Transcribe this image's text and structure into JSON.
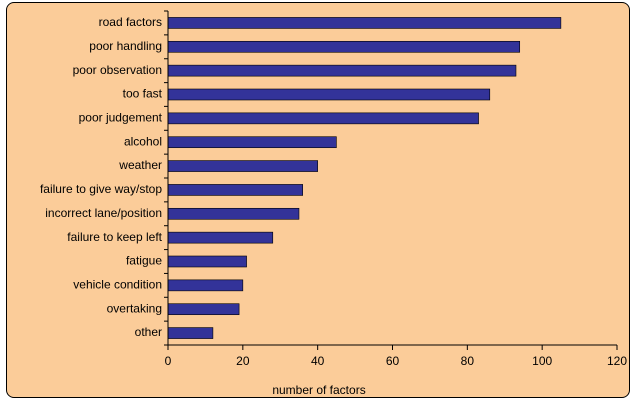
{
  "chart_data": {
    "type": "bar",
    "orientation": "horizontal",
    "categories": [
      "road factors",
      "poor handling",
      "poor observation",
      "too fast",
      "poor judgement",
      "alcohol",
      "weather",
      "failure to give way/stop",
      "incorrect lane/position",
      "failure to keep left",
      "fatigue",
      "vehicle condition",
      "overtaking",
      "other"
    ],
    "values": [
      105,
      94,
      93,
      86,
      83,
      45,
      40,
      36,
      35,
      28,
      21,
      20,
      19,
      12
    ],
    "xlabel": "number of factors",
    "ylabel": "",
    "xlim": [
      0,
      120
    ],
    "xticks": [
      "0",
      "20",
      "40",
      "60",
      "80",
      "100",
      "120"
    ],
    "grid": false,
    "legend": "none",
    "colors": {
      "bar": "#333399",
      "background": "#fbcc99"
    }
  }
}
